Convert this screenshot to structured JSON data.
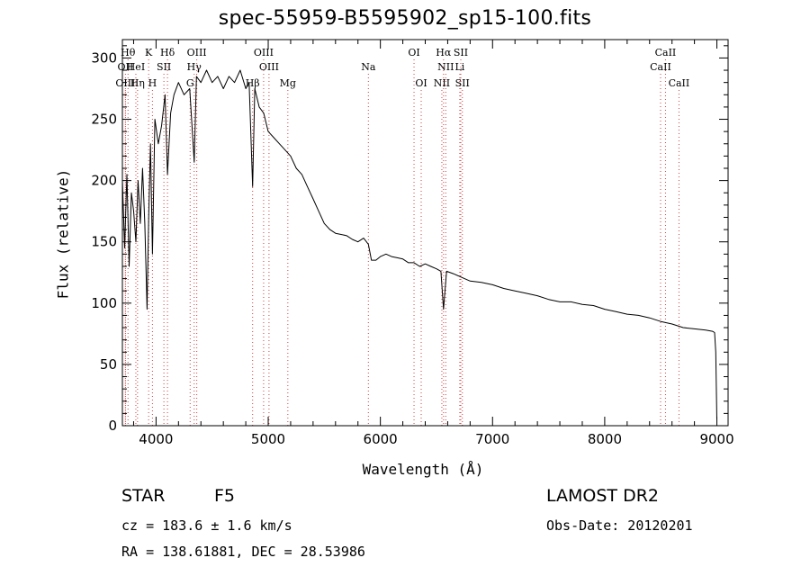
{
  "chart_data": {
    "type": "line",
    "title": "spec-55959-B5595902_sp15-100.fits",
    "xlabel": "Wavelength (Å)",
    "ylabel": "Flux (relative)",
    "xlim": [
      3700,
      9100
    ],
    "ylim": [
      0,
      315
    ],
    "x_ticks": [
      4000,
      5000,
      6000,
      7000,
      8000,
      9000
    ],
    "y_ticks": [
      0,
      50,
      100,
      150,
      200,
      250,
      300
    ],
    "grid": false,
    "series": [
      {
        "x": [
          3700,
          3720,
          3740,
          3760,
          3780,
          3800,
          3820,
          3840,
          3860,
          3880,
          3900,
          3920,
          3934,
          3950,
          3968,
          3990,
          4020,
          4050,
          4080,
          4102,
          4130,
          4160,
          4200,
          4250,
          4300,
          4340,
          4360,
          4400,
          4450,
          4500,
          4550,
          4600,
          4650,
          4700,
          4750,
          4800,
          4830,
          4861,
          4880,
          4920,
          4960,
          5000,
          5050,
          5100,
          5150,
          5200,
          5250,
          5300,
          5350,
          5400,
          5450,
          5500,
          5550,
          5600,
          5650,
          5700,
          5750,
          5800,
          5850,
          5893,
          5920,
          5960,
          6000,
          6050,
          6100,
          6150,
          6200,
          6250,
          6300,
          6350,
          6400,
          6450,
          6500,
          6540,
          6563,
          6590,
          6650,
          6700,
          6750,
          6800,
          6900,
          7000,
          7100,
          7200,
          7300,
          7400,
          7500,
          7600,
          7700,
          7800,
          7900,
          8000,
          8100,
          8200,
          8300,
          8400,
          8500,
          8600,
          8700,
          8800,
          8900,
          8960,
          8980,
          8990,
          9000
        ],
        "y": [
          200,
          145,
          205,
          130,
          190,
          175,
          150,
          200,
          165,
          210,
          165,
          95,
          170,
          230,
          140,
          250,
          230,
          245,
          270,
          205,
          255,
          270,
          280,
          270,
          275,
          215,
          285,
          280,
          290,
          280,
          285,
          275,
          285,
          280,
          290,
          275,
          280,
          195,
          275,
          260,
          255,
          240,
          235,
          230,
          225,
          220,
          210,
          205,
          195,
          185,
          175,
          165,
          160,
          157,
          156,
          155,
          152,
          150,
          153,
          148,
          135,
          135,
          138,
          140,
          138,
          137,
          136,
          133,
          133,
          130,
          132,
          130,
          128,
          126,
          95,
          126,
          124,
          122,
          120,
          118,
          117,
          115,
          112,
          110,
          108,
          106,
          103,
          101,
          101,
          99,
          98,
          95,
          93,
          91,
          90,
          88,
          85,
          83,
          80,
          79,
          78,
          77,
          76,
          60,
          5
        ]
      }
    ],
    "spectral_lines": [
      {
        "label": "OII",
        "wave": 3727,
        "row": 1
      },
      {
        "label": "OIII",
        "wave": 3727,
        "row": 2
      },
      {
        "label": "Hθ",
        "wave": 3750,
        "row": 0
      },
      {
        "label": "Hη",
        "wave": 3835,
        "row": 2
      },
      {
        "label": "HeI",
        "wave": 3820,
        "row": 1
      },
      {
        "label": "K",
        "wave": 3934,
        "row": 0
      },
      {
        "label": "SII",
        "wave": 4070,
        "row": 1
      },
      {
        "label": "H",
        "wave": 3968,
        "row": 2
      },
      {
        "label": "Hδ",
        "wave": 4102,
        "row": 0
      },
      {
        "label": "OIII",
        "wave": 4363,
        "row": 0
      },
      {
        "label": "Hγ",
        "wave": 4340,
        "row": 1
      },
      {
        "label": "G",
        "wave": 4304,
        "row": 2
      },
      {
        "label": "Hβ",
        "wave": 4861,
        "row": 2
      },
      {
        "label": "OIII",
        "wave": 4959,
        "row": 0
      },
      {
        "label": "OIII",
        "wave": 5007,
        "row": 1
      },
      {
        "label": "Mg",
        "wave": 5175,
        "row": 2
      },
      {
        "label": "Na",
        "wave": 5893,
        "row": 1
      },
      {
        "label": "OI",
        "wave": 6300,
        "row": 0
      },
      {
        "label": "OI",
        "wave": 6364,
        "row": 2
      },
      {
        "label": "Hα",
        "wave": 6563,
        "row": 0
      },
      {
        "label": "NII",
        "wave": 6583,
        "row": 1
      },
      {
        "label": "NII",
        "wave": 6548,
        "row": 2
      },
      {
        "label": "SII",
        "wave": 6717,
        "row": 0
      },
      {
        "label": "Li",
        "wave": 6708,
        "row": 1
      },
      {
        "label": "SII",
        "wave": 6731,
        "row": 2
      },
      {
        "label": "CaII",
        "wave": 8542,
        "row": 0
      },
      {
        "label": "CaII",
        "wave": 8498,
        "row": 1
      },
      {
        "label": "CaII",
        "wave": 8662,
        "row": 2
      }
    ]
  },
  "info": {
    "object_class": "STAR",
    "subclass": "F5",
    "survey": "LAMOST DR2",
    "cz": "cz = 183.6 ± 1.6 km/s",
    "obs_date": "Obs-Date: 20120201",
    "radec": "RA = 138.61881, DEC =  28.53986"
  }
}
